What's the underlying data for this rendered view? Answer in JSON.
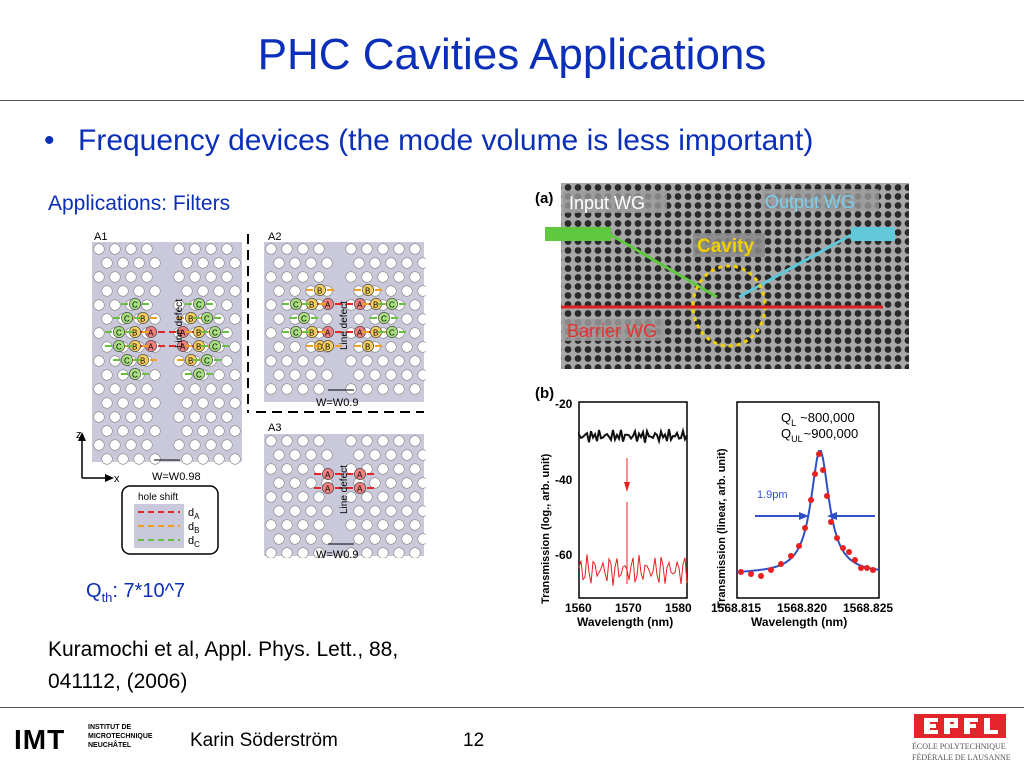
{
  "slide": {
    "title": "PHC Cavities Applications",
    "bullet": "Frequency devices (the mode volume is less important)",
    "subhead": "Applications: Filters",
    "q_label": "Q",
    "q_sub": "th",
    "q_value": ": 7*10^7",
    "citation_line1": "Kuramochi et al, Appl. Phys. Lett., 88,",
    "citation_line2": "041112, (2006)"
  },
  "left_figure": {
    "panels": [
      "A1",
      "A2",
      "A3"
    ],
    "line_defect": "Line defect",
    "width_a1": "W=W0.98",
    "width_a2": "W=W0.9",
    "width_a3": "W=W0.9",
    "axis_z": "z",
    "axis_x": "x",
    "hole_shift_title": "hole shift",
    "shifts": [
      {
        "label": "d",
        "sub": "A",
        "color": "#e0282a"
      },
      {
        "label": "d",
        "sub": "B",
        "color": "#f0a020"
      },
      {
        "label": "d",
        "sub": "C",
        "color": "#68c040"
      }
    ],
    "hole_labels": [
      "A",
      "B",
      "C"
    ]
  },
  "figure_a": {
    "label": "(a)",
    "input_wg": "Input WG",
    "output_wg": "Output WG",
    "cavity": "Cavity",
    "barrier_wg": "Barrier WG"
  },
  "figure_b": {
    "label": "(b)",
    "left_plot": {
      "ylabel": "Transmission (log., arb. unit)",
      "xlabel": "Wavelength (nm)",
      "yticks": [
        "-20",
        "-40",
        "-60"
      ],
      "xticks": [
        "1560",
        "1570",
        "1580"
      ]
    },
    "right_plot": {
      "ylabel": "Transmission (linear, arb. unit)",
      "xlabel": "Wavelength (nm)",
      "xticks": [
        "1568.815",
        "1568.820",
        "1568.825"
      ],
      "ql": "Q",
      "ql_sub": "L",
      "ql_val": "~800,000",
      "qul": "Q",
      "qul_sub": "UL",
      "qul_val": "~900,000",
      "fwhm": "1.9pm"
    }
  },
  "footer": {
    "logo": "IMT",
    "logo_sub1": "INSTITUT DE",
    "logo_sub2": "MICROTECHNIQUE",
    "logo_sub3": "NEUCHÂTEL",
    "author": "Karin Söderström",
    "page": "12",
    "epfl_line1": "ÉCOLE POLYTECHNIQUE",
    "epfl_line2": "FÉDÉRALE DE LAUSANNE"
  }
}
